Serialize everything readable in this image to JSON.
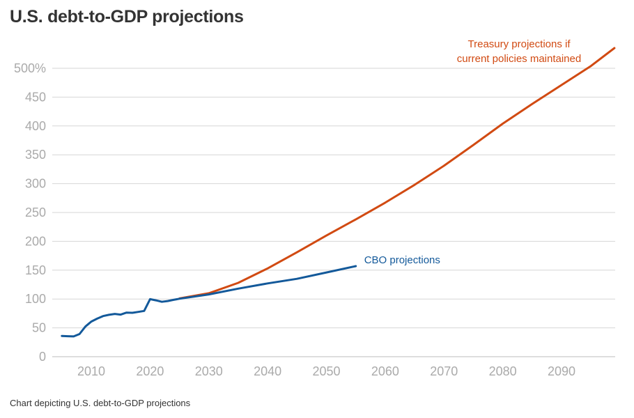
{
  "title": "U.S. debt-to-GDP projections",
  "caption": "Chart depicting U.S. debt-to-GDP projections",
  "chart_data": {
    "type": "line",
    "ylim": [
      0,
      500
    ],
    "xlim": [
      2003,
      2100
    ],
    "y_ticks": [
      0,
      50,
      100,
      150,
      200,
      250,
      300,
      350,
      400,
      450,
      500
    ],
    "y_tick_labels": [
      "0",
      "50",
      "100",
      "150",
      "200",
      "250",
      "300",
      "350",
      "400",
      "450",
      "500%"
    ],
    "x_ticks": [
      2010,
      2020,
      2030,
      2040,
      2050,
      2060,
      2070,
      2080,
      2090
    ],
    "x_tick_labels": [
      "2010",
      "2020",
      "2030",
      "2040",
      "2050",
      "2060",
      "2070",
      "2080",
      "2090"
    ],
    "grid": "horizontal",
    "series": [
      {
        "name": "Treasury projections if current policies maintained",
        "label_lines": [
          "Treasury projections if",
          "current policies maintained"
        ],
        "color": "#d14a12",
        "points": [
          [
            2025,
            101
          ],
          [
            2030,
            110
          ],
          [
            2035,
            128
          ],
          [
            2040,
            153
          ],
          [
            2045,
            181
          ],
          [
            2050,
            210
          ],
          [
            2055,
            238
          ],
          [
            2060,
            267
          ],
          [
            2065,
            298
          ],
          [
            2070,
            331
          ],
          [
            2075,
            367
          ],
          [
            2080,
            404
          ],
          [
            2085,
            438
          ],
          [
            2090,
            471
          ],
          [
            2095,
            504
          ],
          [
            2099,
            535
          ]
        ]
      },
      {
        "name": "CBO projections",
        "label_lines": [
          "CBO projections"
        ],
        "color": "#13599a",
        "points": [
          [
            2005,
            36
          ],
          [
            2006,
            35.5
          ],
          [
            2007,
            35.2
          ],
          [
            2008,
            39.3
          ],
          [
            2009,
            52.3
          ],
          [
            2010,
            60.9
          ],
          [
            2011,
            65.9
          ],
          [
            2012,
            70.4
          ],
          [
            2013,
            72.6
          ],
          [
            2014,
            74.1
          ],
          [
            2015,
            72.9
          ],
          [
            2016,
            76.4
          ],
          [
            2017,
            76.1
          ],
          [
            2018,
            77.6
          ],
          [
            2019,
            79.4
          ],
          [
            2020,
            99.8
          ],
          [
            2021,
            97.7
          ],
          [
            2022,
            95.2
          ],
          [
            2023,
            96.5
          ],
          [
            2024,
            98.5
          ],
          [
            2025,
            100.5
          ],
          [
            2030,
            108
          ],
          [
            2035,
            118
          ],
          [
            2040,
            127
          ],
          [
            2045,
            135
          ],
          [
            2050,
            146
          ],
          [
            2055,
            157
          ]
        ]
      }
    ]
  }
}
